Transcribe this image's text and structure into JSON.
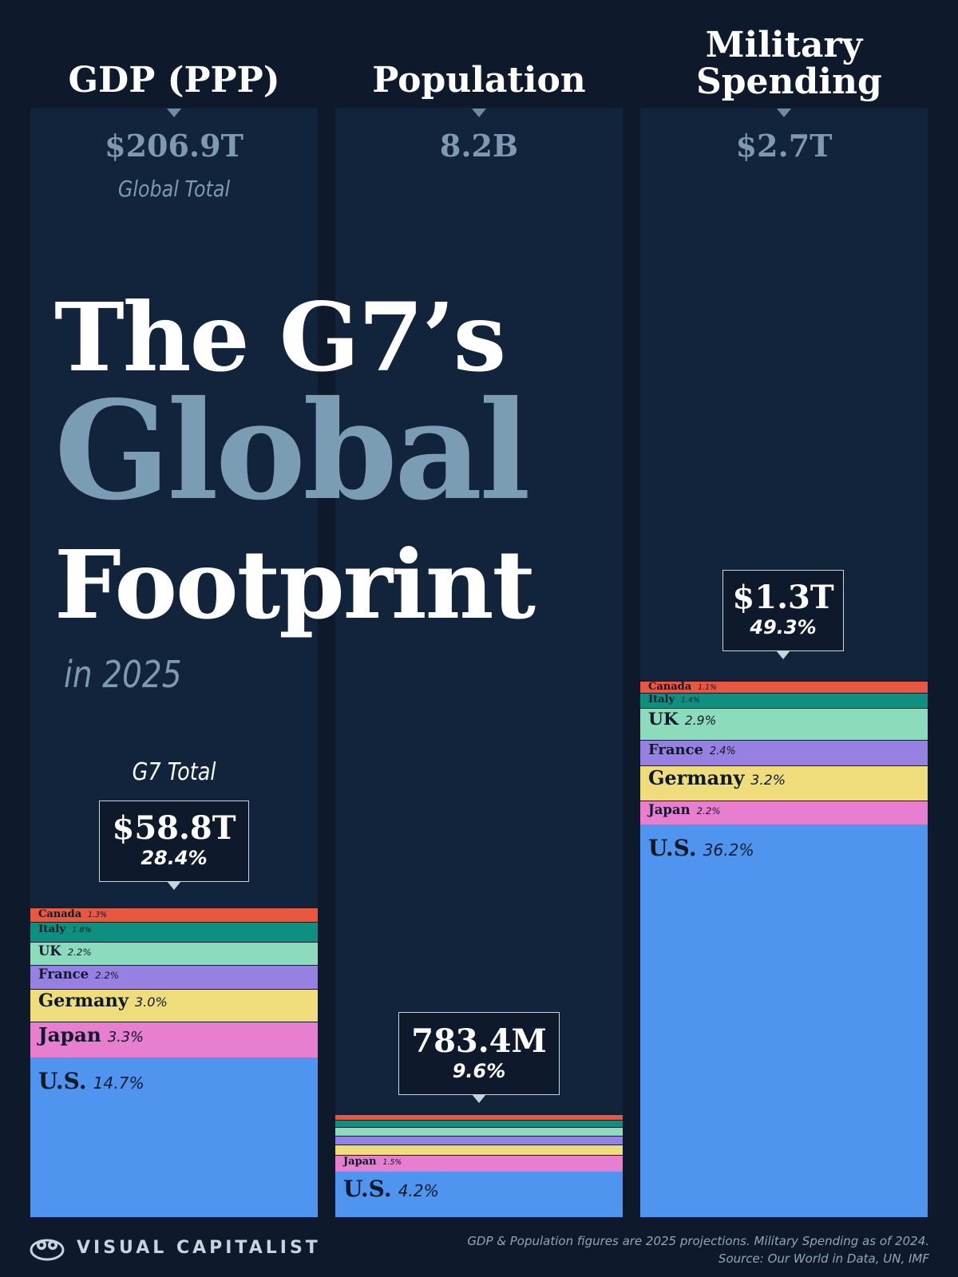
{
  "title": {
    "line1": "The G7’s",
    "line2": "Global",
    "line3": "Footprint",
    "line4": "in 2025"
  },
  "g7_total_label": "G7 Total",
  "chart_data": {
    "type": "stacked-bar",
    "unit": "% of global total",
    "colors": {
      "U.S.": "#4f95f0",
      "Japan": "#e87ed0",
      "Germany": "#eedd7a",
      "France": "#9681e2",
      "UK": "#8ddbbd",
      "Italy": "#0e8f7f",
      "Canada": "#e8573f"
    },
    "columns": [
      {
        "header": "GDP (PPP)",
        "global_total": "$206.9T",
        "global_label": "Global Total",
        "g7_total": "$58.8T",
        "g7_percent": "28.4%",
        "segments": [
          {
            "country": "U.S.",
            "value": 14.7,
            "label": "14.7%"
          },
          {
            "country": "Japan",
            "value": 3.3,
            "label": "3.3%"
          },
          {
            "country": "Germany",
            "value": 3.0,
            "label": "3.0%"
          },
          {
            "country": "France",
            "value": 2.2,
            "label": "2.2%"
          },
          {
            "country": "UK",
            "value": 2.2,
            "label": "2.2%"
          },
          {
            "country": "Italy",
            "value": 1.8,
            "label": "1.8%"
          },
          {
            "country": "Canada",
            "value": 1.3,
            "label": "1.3%"
          }
        ]
      },
      {
        "header": "Population",
        "global_total": "8.2B",
        "global_label": "",
        "g7_total": "783.4M",
        "g7_percent": "9.6%",
        "segments": [
          {
            "country": "U.S.",
            "value": 4.2,
            "label": "4.2%"
          },
          {
            "country": "Japan",
            "value": 1.5,
            "label": "1.5%"
          },
          {
            "country": "Germany",
            "value": 1.0,
            "label": ""
          },
          {
            "country": "France",
            "value": 0.8,
            "label": ""
          },
          {
            "country": "UK",
            "value": 0.8,
            "label": ""
          },
          {
            "country": "Italy",
            "value": 0.7,
            "label": ""
          },
          {
            "country": "Canada",
            "value": 0.5,
            "label": ""
          }
        ]
      },
      {
        "header": "Military Spending",
        "global_total": "$2.7T",
        "global_label": "",
        "g7_total": "$1.3T",
        "g7_percent": "49.3%",
        "segments": [
          {
            "country": "U.S.",
            "value": 36.2,
            "label": "36.2%"
          },
          {
            "country": "Japan",
            "value": 2.2,
            "label": "2.2%"
          },
          {
            "country": "Germany",
            "value": 3.2,
            "label": "3.2%"
          },
          {
            "country": "France",
            "value": 2.4,
            "label": "2.4%"
          },
          {
            "country": "UK",
            "value": 2.9,
            "label": "2.9%"
          },
          {
            "country": "Italy",
            "value": 1.4,
            "label": "1.4%"
          },
          {
            "country": "Canada",
            "value": 1.1,
            "label": "1.1%"
          }
        ]
      }
    ]
  },
  "footer": {
    "brand": "VISUAL CAPITALIST",
    "note_line1": "GDP & Population figures are 2025 projections. Military Spending as of 2024.",
    "note_line2": "Source: Our World in Data, UN, IMF"
  }
}
